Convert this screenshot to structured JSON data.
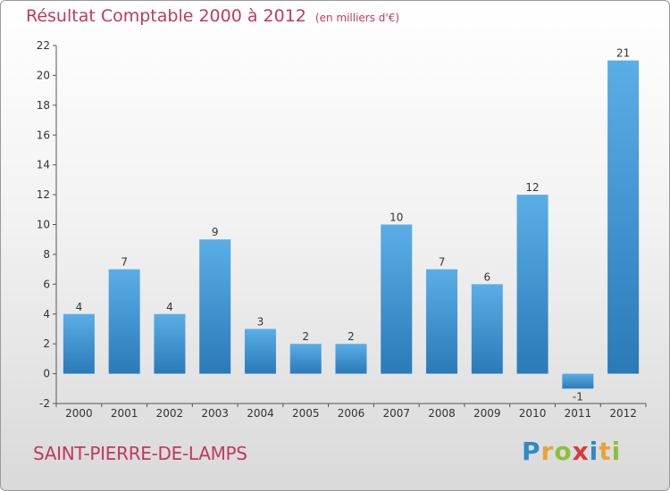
{
  "header": {
    "title": "Résultat Comptable 2000 à 2012",
    "subtitle": "(en milliers d'€)"
  },
  "footer": {
    "commune": "SAINT-PIERRE-DE-LAMPS",
    "logo": "Proxiti"
  },
  "colors": {
    "title": "#c0395f",
    "bar_light": "#5aaee6",
    "bar_dark": "#2a7ab8"
  },
  "chart_data": {
    "type": "bar",
    "title": "Résultat Comptable 2000 à 2012",
    "subtitle": "(en milliers d'€)",
    "xlabel": "",
    "ylabel": "",
    "categories": [
      "2000",
      "2001",
      "2002",
      "2003",
      "2004",
      "2005",
      "2006",
      "2007",
      "2008",
      "2009",
      "2010",
      "2011",
      "2012"
    ],
    "values": [
      4,
      7,
      4,
      9,
      3,
      2,
      2,
      10,
      7,
      6,
      12,
      -1,
      21
    ],
    "ylim": [
      -2,
      22
    ],
    "yticks": [
      -2,
      0,
      2,
      4,
      6,
      8,
      10,
      12,
      14,
      16,
      18,
      20,
      22
    ],
    "grid": false,
    "legend": "none"
  }
}
